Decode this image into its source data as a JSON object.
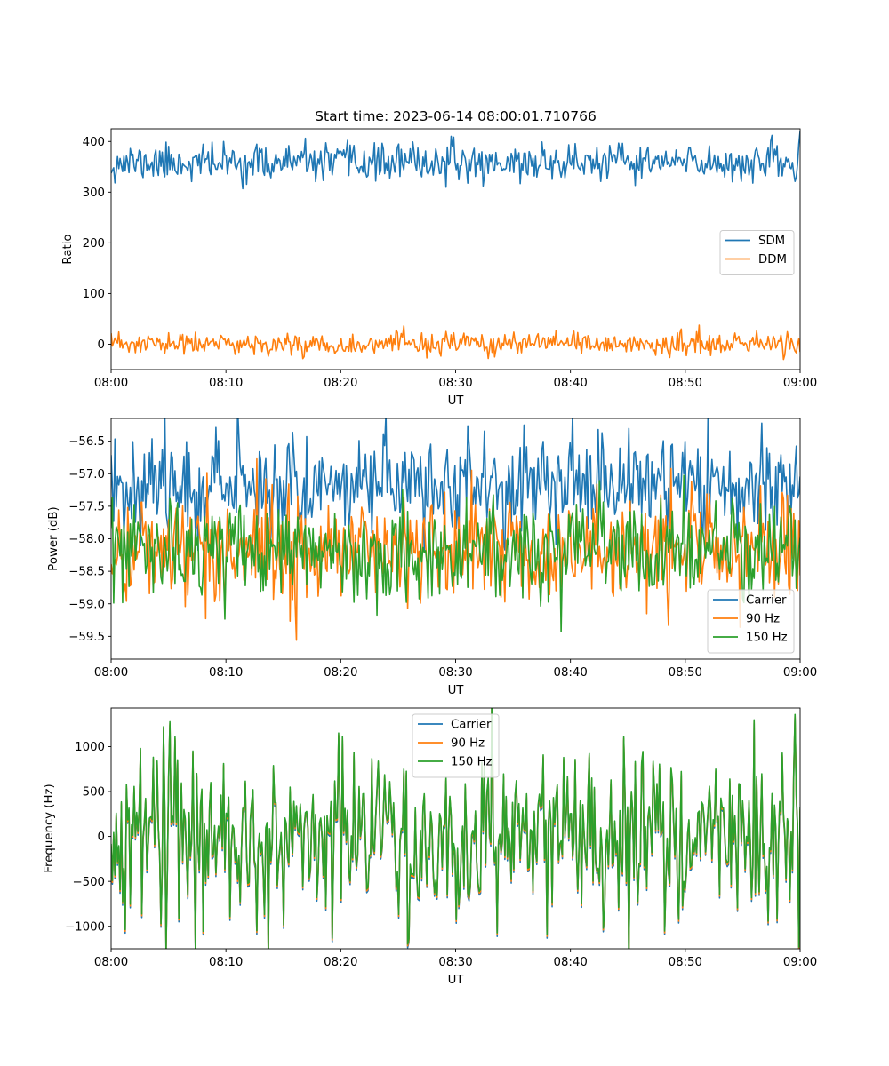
{
  "figure": {
    "title": "Start time: 2023-06-14 08:00:01.710766"
  },
  "chart_data": [
    {
      "type": "line",
      "title": "Start time: 2023-06-14 08:00:01.710766",
      "xlabel": "UT",
      "ylabel": "Ratio",
      "xlim": [
        "08:00",
        "09:00"
      ],
      "ylim": [
        -50,
        425
      ],
      "x_ticks": [
        "08:00",
        "08:10",
        "08:20",
        "08:30",
        "08:40",
        "08:50",
        "09:00"
      ],
      "y_ticks": [
        0,
        100,
        200,
        300,
        400
      ],
      "y_tick_labels": [
        "0",
        "100",
        "200",
        "300",
        "400"
      ],
      "grid": false,
      "legend": "center-right",
      "series": [
        {
          "name": "SDM",
          "color": "#1f77b4",
          "mean": 358,
          "amplitude": 18,
          "seed": 11
        },
        {
          "name": "DDM",
          "color": "#ff7f0e",
          "mean": 0,
          "amplitude": 11,
          "seed": 23
        }
      ]
    },
    {
      "type": "line",
      "title": "",
      "xlabel": "UT",
      "ylabel": "Power (dB)",
      "xlim": [
        "08:00",
        "09:00"
      ],
      "ylim": [
        -59.85,
        -56.15
      ],
      "x_ticks": [
        "08:00",
        "08:10",
        "08:20",
        "08:30",
        "08:40",
        "08:50",
        "09:00"
      ],
      "y_ticks": [
        -56.5,
        -57.0,
        -57.5,
        -58.0,
        -58.5,
        -59.0,
        -59.5
      ],
      "y_tick_labels": [
        "−56.5",
        "−57.0",
        "−57.5",
        "−58.0",
        "−58.5",
        "−59.0",
        "−59.5"
      ],
      "grid": false,
      "legend": "lower-right",
      "series": [
        {
          "name": "Carrier",
          "color": "#1f77b4",
          "mean": -57.15,
          "amplitude": 0.38,
          "seed": 37
        },
        {
          "name": "90 Hz",
          "color": "#ff7f0e",
          "mean": -58.15,
          "amplitude": 0.42,
          "seed": 41
        },
        {
          "name": "150 Hz",
          "color": "#2ca02c",
          "mean": -58.2,
          "amplitude": 0.36,
          "seed": 53
        }
      ]
    },
    {
      "type": "line",
      "title": "",
      "xlabel": "UT",
      "ylabel": "Frequency (Hz)",
      "xlim": [
        "08:00",
        "09:00"
      ],
      "ylim": [
        -1250,
        1430
      ],
      "x_ticks": [
        "08:00",
        "08:10",
        "08:20",
        "08:30",
        "08:40",
        "08:50",
        "09:00"
      ],
      "y_ticks": [
        1000,
        500,
        0,
        -500,
        -1000
      ],
      "y_tick_labels": [
        "1000",
        "500",
        "0",
        "−500",
        "−1000"
      ],
      "grid": false,
      "legend": "upper-center",
      "series": [
        {
          "name": "Carrier",
          "color": "#1f77b4",
          "mean": -40,
          "amplitude": 480,
          "seed": 67
        },
        {
          "name": "90 Hz",
          "color": "#ff7f0e",
          "mean": -20,
          "amplitude": 480,
          "seed": 67
        },
        {
          "name": "150 Hz",
          "color": "#2ca02c",
          "mean": 0,
          "amplitude": 480,
          "seed": 67
        }
      ]
    }
  ]
}
